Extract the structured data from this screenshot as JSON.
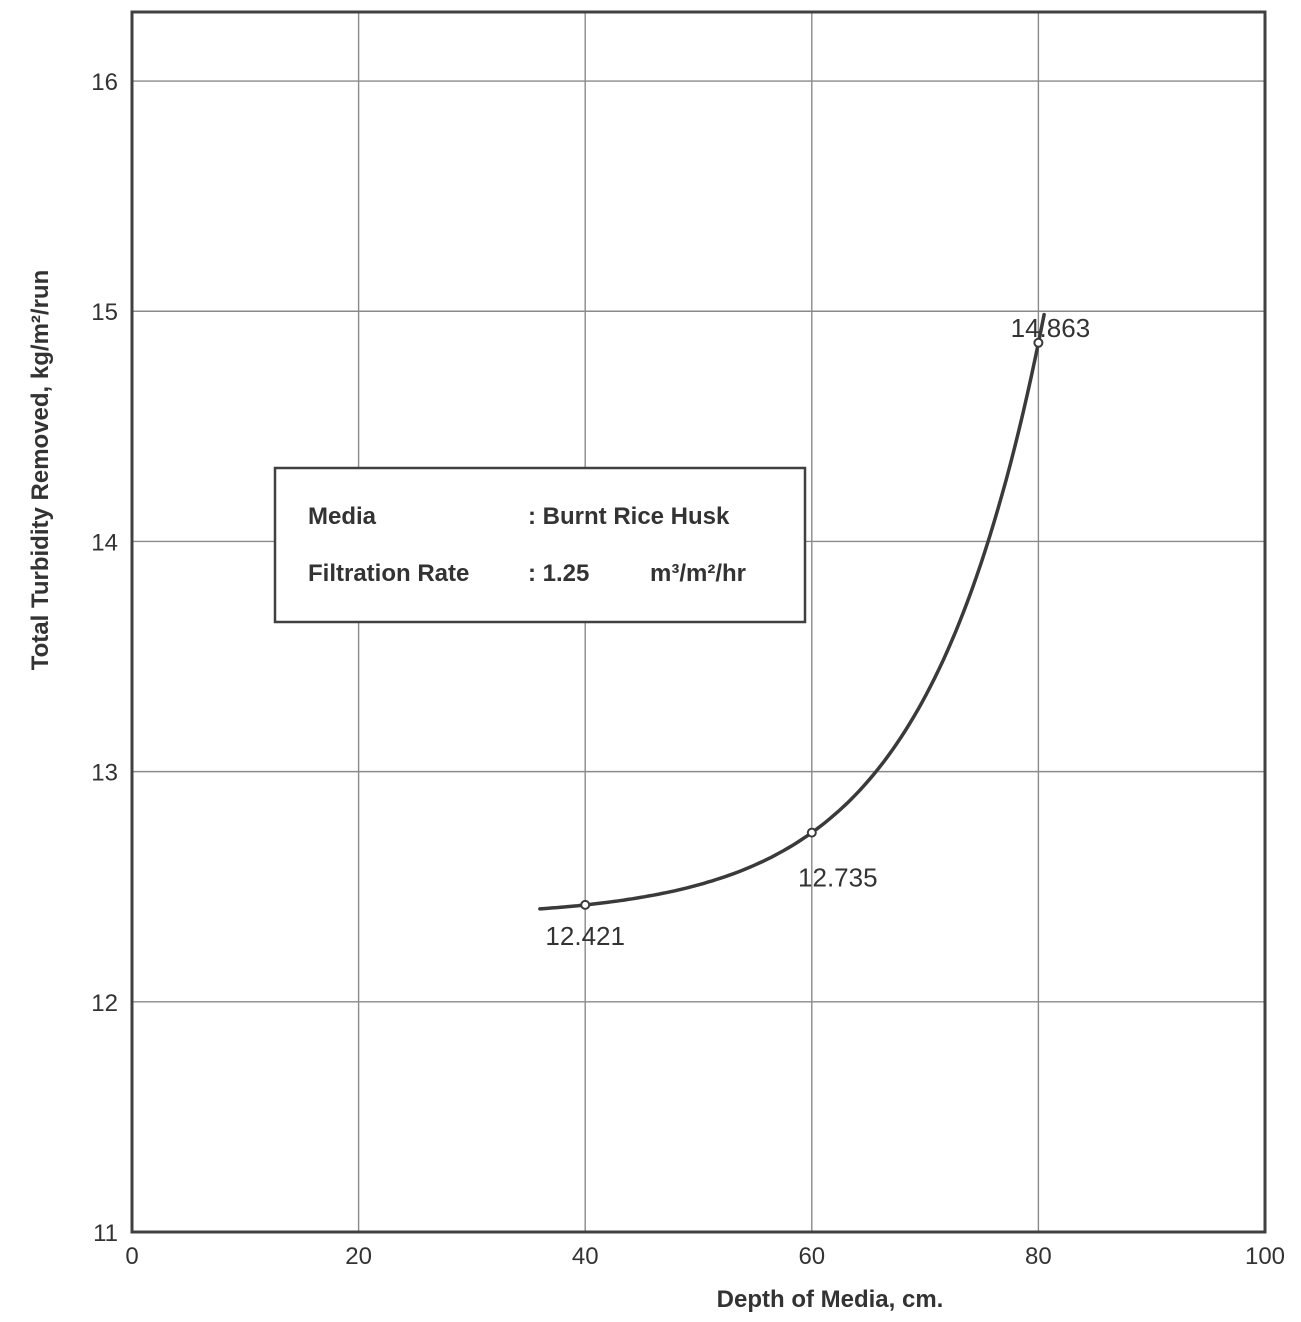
{
  "chart_data": {
    "type": "line",
    "title": "",
    "xlabel": "Depth of Media, cm.",
    "ylabel": "Total Turbidity Removed, kg/m²/run",
    "xlim": [
      0,
      100
    ],
    "ylim": [
      11,
      16.3
    ],
    "x_ticks": [
      0,
      20,
      40,
      60,
      80,
      100
    ],
    "y_ticks": [
      11,
      12,
      13,
      14,
      15,
      16
    ],
    "x_tick_labels": [
      "0",
      "20",
      "40",
      "60",
      "80",
      "100"
    ],
    "y_tick_labels": [
      "11",
      "12",
      "13",
      "14",
      "15",
      "16"
    ],
    "grid": true,
    "legend_position": "upper-left",
    "series": [
      {
        "points": [
          [
            40,
            12.421
          ],
          [
            60,
            12.735
          ],
          [
            80,
            14.863
          ]
        ],
        "labels": [
          "12.421",
          "12.735",
          "14.863"
        ],
        "curve_from": 36,
        "curve_to": 80.5
      }
    ],
    "info_box": {
      "media_key": "Media",
      "media_value": ": Burnt Rice Husk",
      "rate_key": "Filtration Rate",
      "rate_value": ": 1.25",
      "rate_unit": "m³/m²/hr"
    },
    "colors": {
      "line": "#3a3a3a",
      "grid": "#8a8a8a",
      "frame": "#404040",
      "text": "#333333"
    }
  }
}
